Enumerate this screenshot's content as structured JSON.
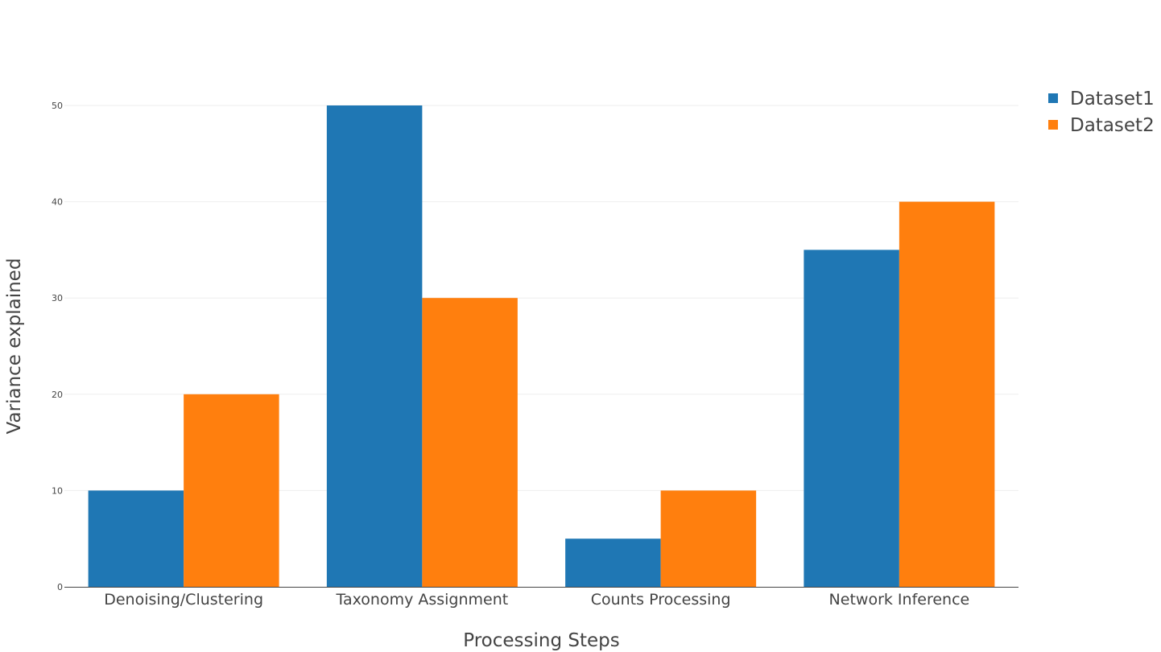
{
  "chart_data": {
    "type": "bar",
    "categories": [
      "Denoising/Clustering",
      "Taxonomy Assignment",
      "Counts Processing",
      "Network Inference"
    ],
    "series": [
      {
        "name": "Dataset1",
        "values": [
          10,
          50,
          5,
          35
        ],
        "color": "#1f77b4"
      },
      {
        "name": "Dataset2",
        "values": [
          20,
          30,
          10,
          40
        ],
        "color": "#ff7f0e"
      }
    ],
    "title": "",
    "xlabel": "Processing Steps",
    "ylabel": "Variance explained",
    "ylim": [
      0,
      50
    ],
    "yticks": [
      0,
      10,
      20,
      30,
      40,
      50
    ],
    "grid": true,
    "legend_position": "top-right"
  }
}
